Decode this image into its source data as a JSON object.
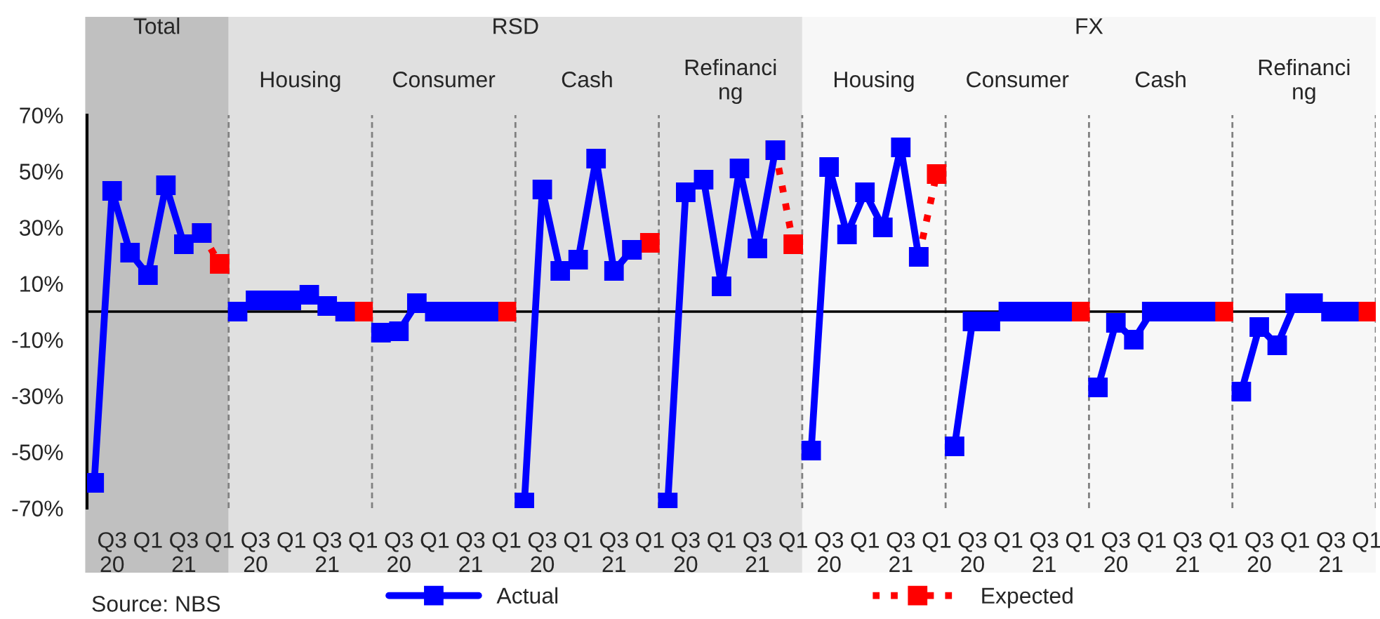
{
  "chart_data": {
    "type": "line",
    "categories": [
      null,
      "Q3\n20",
      null,
      "Q1",
      null,
      "Q3\n21",
      null,
      "Q1",
      null,
      "Q3\n20",
      null,
      "Q1",
      null,
      "Q3\n21",
      null,
      "Q1",
      null,
      "Q3\n20",
      null,
      "Q1",
      null,
      "Q3\n21",
      null,
      "Q1",
      null,
      "Q3\n20",
      null,
      "Q1",
      null,
      "Q3\n21",
      null,
      "Q1",
      null,
      "Q3\n20",
      null,
      "Q1",
      null,
      "Q3\n21",
      null,
      "Q1",
      null,
      "Q3\n20",
      null,
      "Q1",
      null,
      "Q3\n21",
      null,
      "Q1",
      null,
      "Q3\n20",
      null,
      "Q1",
      null,
      "Q3\n21",
      null,
      "Q1",
      null,
      "Q3\n20",
      null,
      "Q1",
      null,
      "Q3\n21",
      null,
      "Q1",
      null,
      "Q3\n20",
      null,
      "Q1",
      null,
      "Q3\n21",
      null,
      "Q1"
    ],
    "ylim": [
      -70,
      70
    ],
    "yticks": [
      {
        "value": 70,
        "label": "70%"
      },
      {
        "value": 50,
        "label": "50%"
      },
      {
        "value": 30,
        "label": "30%"
      },
      {
        "value": 10,
        "label": "10%"
      },
      {
        "value": -10,
        "label": "-10%"
      },
      {
        "value": -30,
        "label": "-30%"
      },
      {
        "value": -50,
        "label": "-50%"
      },
      {
        "value": -70,
        "label": "-70%"
      }
    ],
    "ref_lines": [
      {
        "axis": "y",
        "value": 0,
        "color": "#000000"
      }
    ],
    "legend": "bottom",
    "annotations": [
      "Total",
      "RSD",
      "FX",
      "Housing",
      "Consumer",
      "Cash",
      "Refinanci\nng",
      "Housing",
      "Consumer",
      "Cash",
      "Refinanci\nng",
      "Source: NBS"
    ],
    "series": [
      {
        "name": "Actual",
        "color": "#0000ff",
        "marker": "square",
        "line_style": "solid",
        "values": [
          -61,
          43,
          21,
          13,
          45,
          24,
          28,
          null,
          0,
          4,
          4,
          4,
          6,
          2,
          0,
          null,
          -7.5,
          -7,
          3,
          0,
          0,
          0,
          0,
          null,
          -68,
          43.5,
          14.5,
          18.5,
          54.5,
          14.5,
          22,
          null,
          -68,
          42.5,
          47,
          9,
          51,
          22.5,
          57.5,
          null,
          -49.5,
          51.5,
          27.5,
          42.5,
          30,
          58.5,
          19.5,
          null,
          -48,
          -3.5,
          -3.5,
          0,
          0,
          0,
          0,
          null,
          -27,
          -4,
          -10,
          0,
          0,
          0,
          0,
          null,
          -28.5,
          -5.5,
          -12,
          3,
          3,
          0,
          0,
          null
        ]
      },
      {
        "name": "Expected",
        "color": "#ff0000",
        "marker": "square",
        "line_style": "dotted",
        "values": [
          null,
          null,
          null,
          null,
          null,
          null,
          28,
          17,
          null,
          null,
          null,
          null,
          null,
          null,
          0,
          0,
          null,
          null,
          null,
          null,
          null,
          null,
          0,
          0,
          null,
          null,
          null,
          null,
          null,
          null,
          22,
          24.5,
          null,
          null,
          null,
          null,
          null,
          null,
          57.5,
          24,
          null,
          null,
          null,
          null,
          null,
          null,
          19.5,
          49,
          null,
          null,
          null,
          null,
          null,
          null,
          0,
          0,
          null,
          null,
          null,
          null,
          null,
          null,
          0,
          0,
          null,
          null,
          null,
          null,
          null,
          null,
          0,
          0
        ]
      }
    ]
  }
}
